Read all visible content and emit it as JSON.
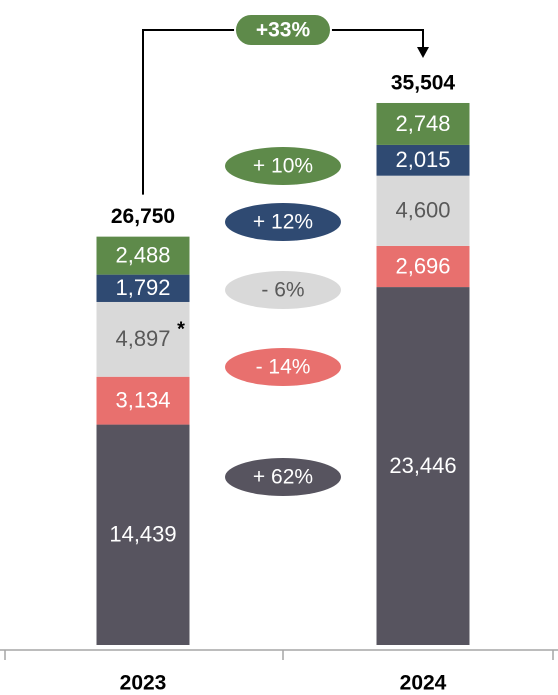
{
  "chart_data": {
    "type": "stacked-bar",
    "categories": [
      "2023",
      "2024"
    ],
    "series": [
      {
        "color": "#57545f",
        "label_color": "#ffffff",
        "values": [
          14439,
          23446
        ],
        "value_labels": [
          "14,439",
          "23,446"
        ],
        "change": "+ 62%"
      },
      {
        "color": "#e8706e",
        "label_color": "#ffffff",
        "values": [
          3134,
          2696
        ],
        "value_labels": [
          "3,134",
          "2,696"
        ],
        "change": "- 14%"
      },
      {
        "color": "#d9d9d9",
        "label_color": "#595959",
        "values": [
          4897,
          4600
        ],
        "value_labels": [
          "4,897",
          "4,600"
        ],
        "value_notes": [
          "*",
          null
        ],
        "change": "- 6%"
      },
      {
        "color": "#2f4a72",
        "label_color": "#ffffff",
        "values": [
          1792,
          2015
        ],
        "value_labels": [
          "1,792",
          "2,015"
        ],
        "change": "+ 12%"
      },
      {
        "color": "#5e8a4a",
        "label_color": "#ffffff",
        "values": [
          2488,
          2748
        ],
        "value_labels": [
          "2,488",
          "2,748"
        ],
        "change": "+ 10%"
      }
    ],
    "totals": [
      26750,
      35504
    ],
    "total_labels": [
      "26,750",
      "35,504"
    ],
    "growth_label": "+33%",
    "growth_color": "#5e8a4a"
  }
}
